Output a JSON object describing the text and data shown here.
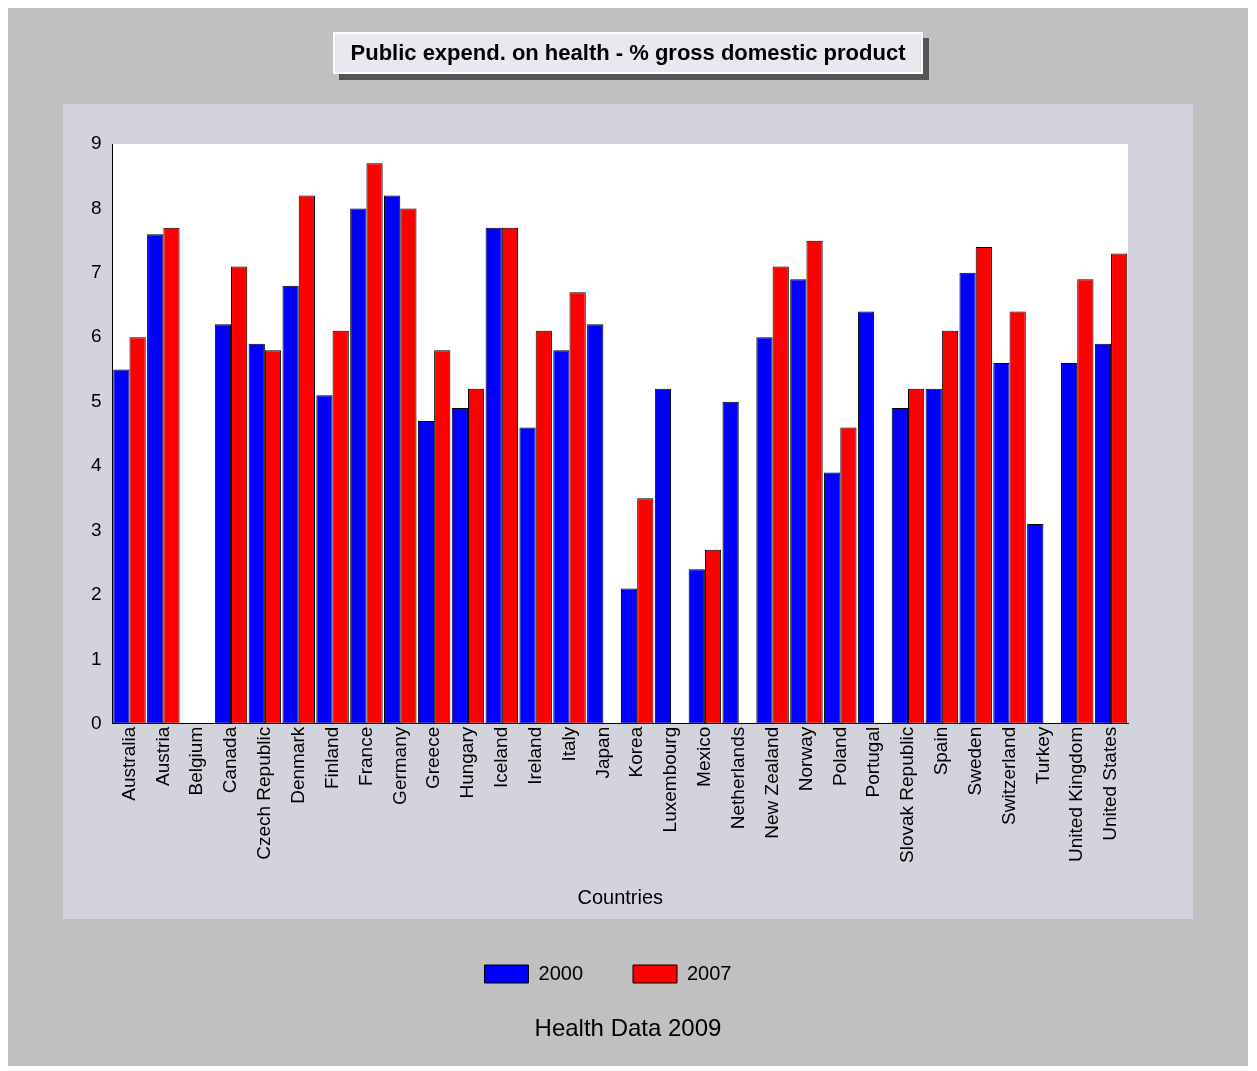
{
  "chart_data": {
    "type": "bar",
    "title": "Public expend. on health - % gross domestic product",
    "xlabel": "Countries",
    "categories": [
      "Australia",
      "Austria",
      "Belgium",
      "Canada",
      "Czech Republic",
      "Denmark",
      "Finland",
      "France",
      "Germany",
      "Greece",
      "Hungary",
      "Iceland",
      "Ireland",
      "Italy",
      "Japan",
      "Korea",
      "Luxembourg",
      "Mexico",
      "Netherlands",
      "New Zealand",
      "Norway",
      "Poland",
      "Portugal",
      "Slovak Republic",
      "Spain",
      "Sweden",
      "Switzerland",
      "Turkey",
      "United Kingdom",
      "United States"
    ],
    "series": [
      {
        "name": "2000",
        "color": "#0000ff",
        "values": [
          5.5,
          7.6,
          null,
          6.2,
          5.9,
          6.8,
          5.1,
          8.0,
          8.2,
          4.7,
          4.9,
          7.7,
          4.6,
          5.8,
          6.2,
          2.1,
          5.2,
          2.4,
          5.0,
          6.0,
          6.9,
          3.9,
          6.4,
          4.9,
          5.2,
          7.0,
          5.6,
          3.1,
          5.6,
          5.9
        ]
      },
      {
        "name": "2007",
        "color": "#ff0000",
        "values": [
          6.0,
          7.7,
          null,
          7.1,
          5.8,
          8.2,
          6.1,
          8.7,
          8.0,
          5.8,
          5.2,
          7.7,
          6.1,
          6.7,
          null,
          3.5,
          null,
          2.7,
          null,
          7.1,
          7.5,
          4.6,
          null,
          5.2,
          6.1,
          7.4,
          6.4,
          null,
          6.9,
          7.3
        ]
      }
    ],
    "ylim": [
      0,
      9
    ],
    "yticks": [
      0,
      1,
      2,
      3,
      4,
      5,
      6,
      7,
      8,
      9
    ],
    "grid": false,
    "legend": "bottom",
    "annotations": [
      "Health Data 2009"
    ]
  }
}
